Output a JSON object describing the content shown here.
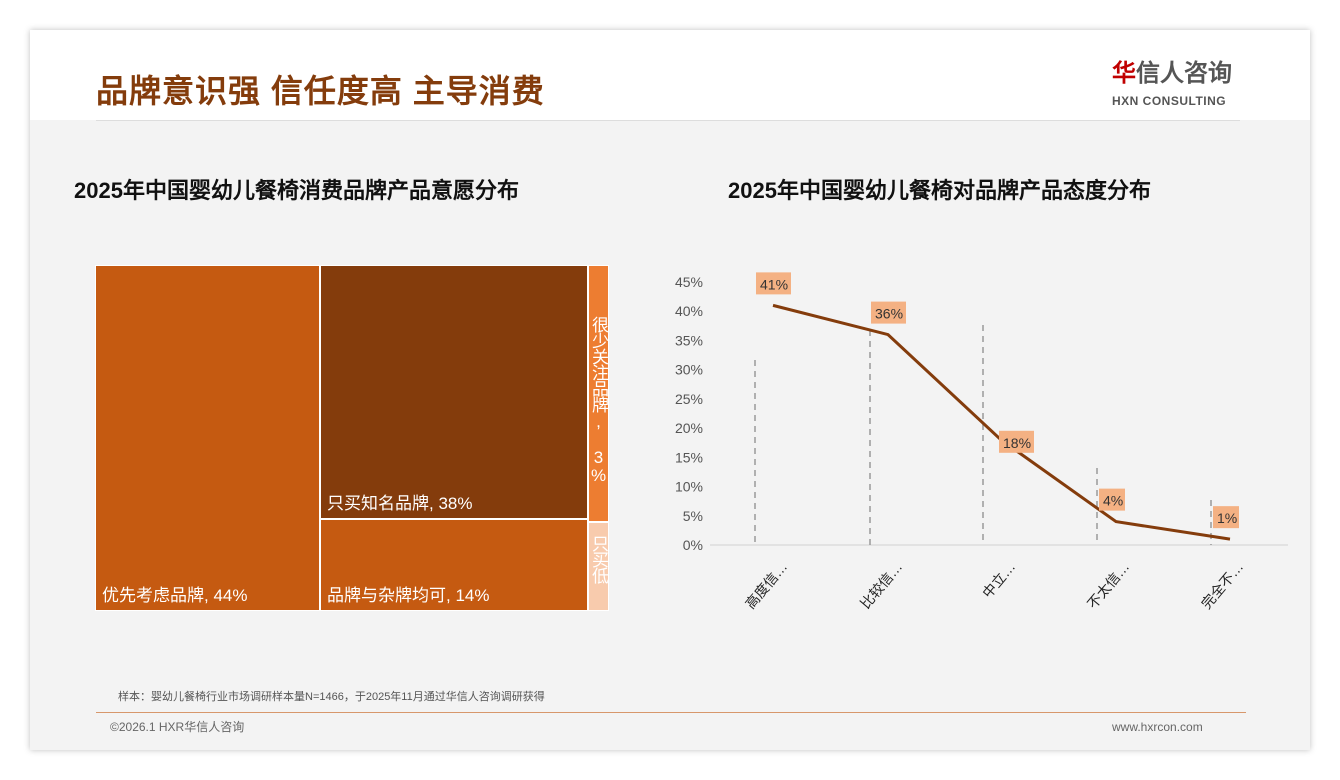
{
  "header": {
    "title": "品牌意识强 信任度高 主导消费",
    "logo_cn_mark": "华",
    "logo_cn": "信人咨询",
    "logo_en": "HXN CONSULTING"
  },
  "chart_data": [
    {
      "type": "treemap",
      "title": "2025年中国婴幼儿餐椅消费品牌产品意愿分布",
      "items": [
        {
          "label": "优先考虑品牌, 44%",
          "name": "优先考虑品牌",
          "value": 44
        },
        {
          "label": "只买知名品牌, 38%",
          "name": "只买知名品牌",
          "value": 38
        },
        {
          "label": "品牌与杂牌均可, 14%",
          "name": "品牌与杂牌均可",
          "value": 14
        },
        {
          "label": "很少关注品牌, 3%",
          "name": "很少关注品牌",
          "value": 3
        },
        {
          "label": "只买低",
          "name": "只买低...",
          "value": 1
        }
      ]
    },
    {
      "type": "line",
      "title": "2025年中国婴幼儿餐椅对品牌产品态度分布",
      "categories": [
        "高度信…",
        "比较信…",
        "中立…",
        "不太信…",
        "完全不…"
      ],
      "values": [
        41,
        36,
        18,
        4,
        1
      ],
      "data_labels": [
        "41%",
        "36%",
        "18%",
        "4%",
        "1%"
      ],
      "yticks": [
        "0%",
        "5%",
        "10%",
        "15%",
        "20%",
        "25%",
        "30%",
        "35%",
        "40%",
        "45%"
      ],
      "ylim": [
        0,
        45
      ],
      "line_color": "#843c0c",
      "label_bg": "#f4b183"
    }
  ],
  "footer": {
    "note": "样本：婴幼儿餐椅行业市场调研样本量N=1466，于2025年11月通过华信人咨询调研获得",
    "copyright": "©2026.1 HXR华信人咨询",
    "website": "www.hxrcon.com"
  }
}
